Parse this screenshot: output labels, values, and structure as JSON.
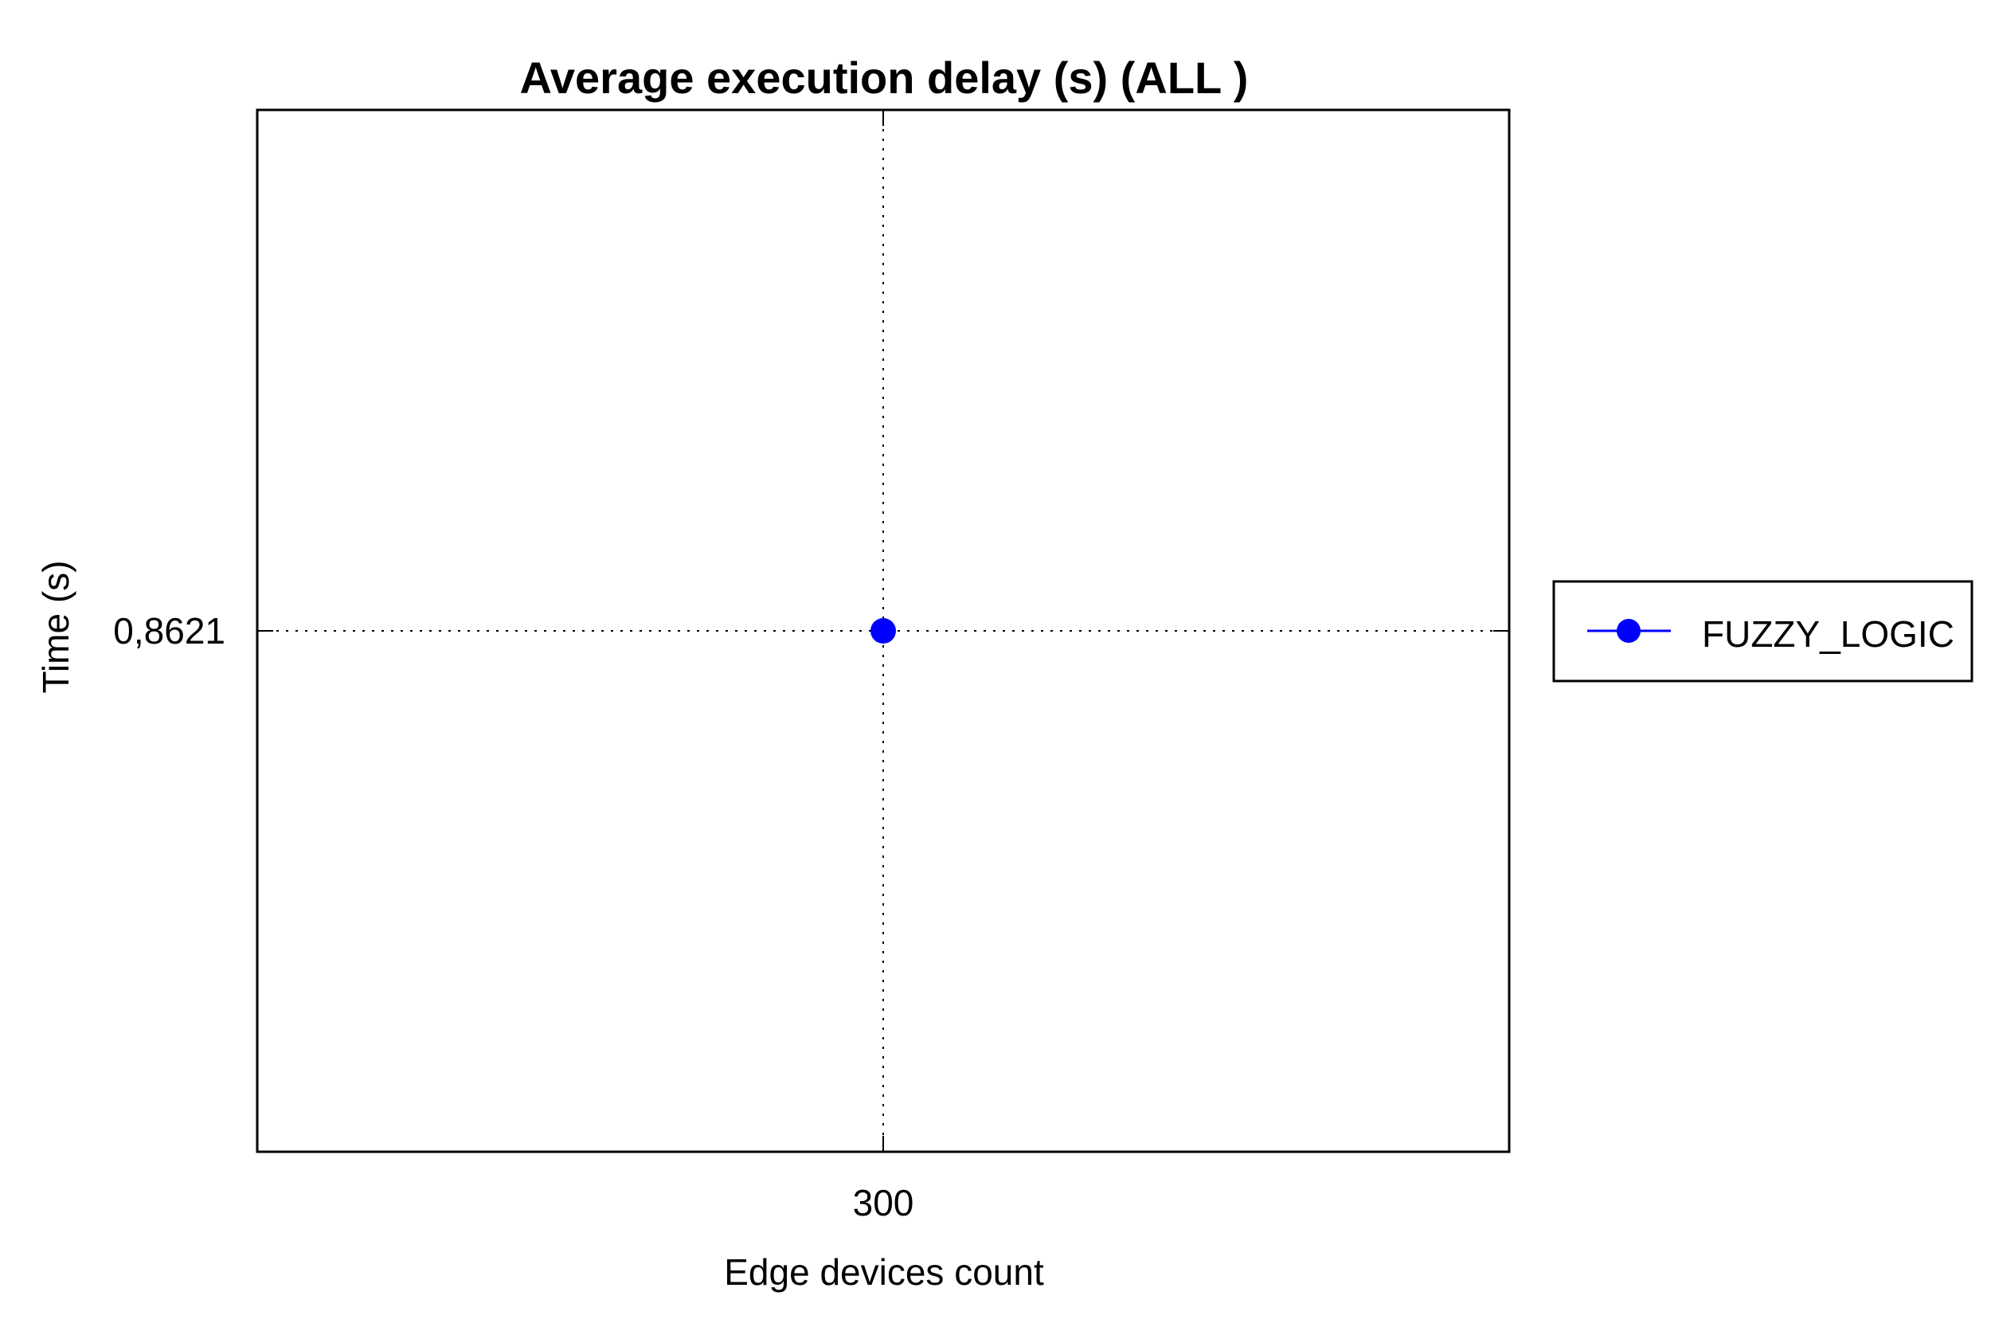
{
  "chart_data": {
    "type": "line",
    "title": "Average execution delay (s) (ALL )",
    "xlabel": "Edge devices count",
    "ylabel": "Time (s)",
    "x_tick_labels": [
      "300"
    ],
    "y_tick_labels": [
      "0,8621"
    ],
    "x": [
      300
    ],
    "series": [
      {
        "name": "FUZZY_LOGIC",
        "values": [
          0.8621
        ],
        "color": "#0000ff",
        "marker": "circle"
      }
    ],
    "grid": true,
    "grid_style": "dotted",
    "legend_position": "right"
  }
}
